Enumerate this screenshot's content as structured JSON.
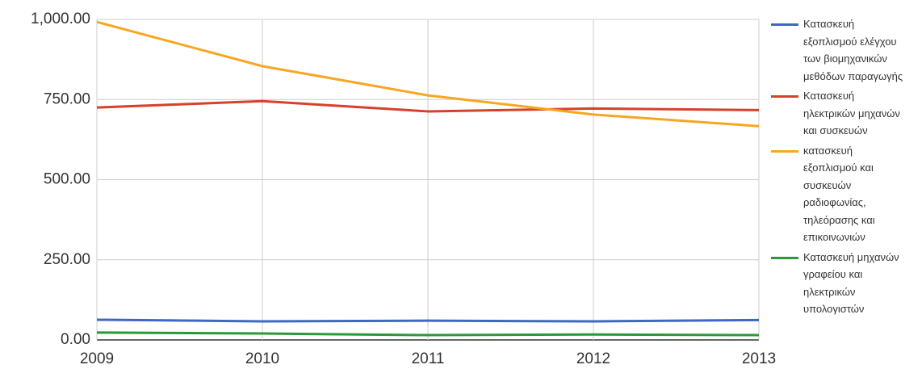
{
  "chart_data": {
    "type": "line",
    "categories": [
      "2009",
      "2010",
      "2011",
      "2012",
      "2013"
    ],
    "series": [
      {
        "name": "Κατασκευή εξοπλισμού ελέγχου των βιομηχανικών μεθόδων παραγωγής",
        "color": "#3f67c6",
        "values": [
          63,
          58,
          60,
          58,
          62
        ]
      },
      {
        "name": "Κατασκευή ηλεκτρικών μηχανών και συσκευών",
        "color": "#d6412b",
        "values": [
          725,
          745,
          713,
          722,
          717
        ]
      },
      {
        "name": "κατασκευή εξοπλισμού και συσκευών ραδιοφωνίας, τηλεόρασης και επικοινωνιών",
        "color": "#f7a622",
        "values": [
          992,
          854,
          763,
          703,
          667
        ]
      },
      {
        "name": "Κατασκευή μηχανών γραφείου και ηλεκτρικών υπολογιστών",
        "color": "#2a9a39",
        "values": [
          23,
          20,
          15,
          17,
          15
        ]
      }
    ],
    "ylim": [
      0,
      1000
    ],
    "yticks": [
      {
        "value": 0,
        "label": "0.00"
      },
      {
        "value": 250,
        "label": "250.00"
      },
      {
        "value": 500,
        "label": "500.00"
      },
      {
        "value": 750,
        "label": "750.00"
      },
      {
        "value": 1000,
        "label": "1,000.00"
      }
    ],
    "grid": true,
    "legend": "right"
  }
}
